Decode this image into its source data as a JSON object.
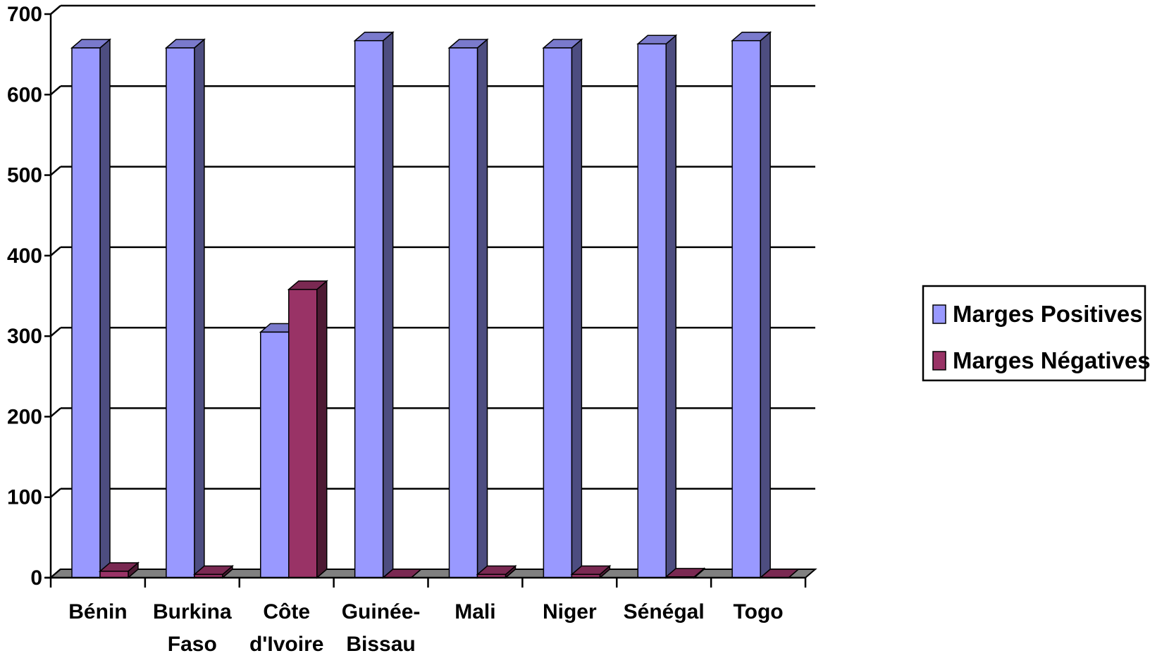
{
  "chart_data": {
    "type": "bar",
    "style": "3d-clustered-column",
    "categories": [
      [
        "Bénin"
      ],
      [
        "Burkina",
        "Faso"
      ],
      [
        "Côte",
        "d'Ivoire"
      ],
      [
        "Guinée-",
        "Bissau"
      ],
      [
        "Mali"
      ],
      [
        "Niger"
      ],
      [
        "Sénégal"
      ],
      [
        "Togo"
      ]
    ],
    "series": [
      {
        "name": "Marges Positives",
        "color": "#9999ff",
        "values": [
          658,
          658,
          305,
          667,
          658,
          658,
          663,
          667
        ]
      },
      {
        "name": "Marges Négatives",
        "color": "#993366",
        "values": [
          8,
          4,
          358,
          0,
          4,
          4,
          1,
          0
        ]
      }
    ],
    "yticks": [
      0,
      100,
      200,
      300,
      400,
      500,
      600,
      700
    ],
    "ylim": [
      0,
      700
    ],
    "grid": true,
    "legend": "right",
    "title": "",
    "xlabel": "",
    "ylabel": ""
  }
}
